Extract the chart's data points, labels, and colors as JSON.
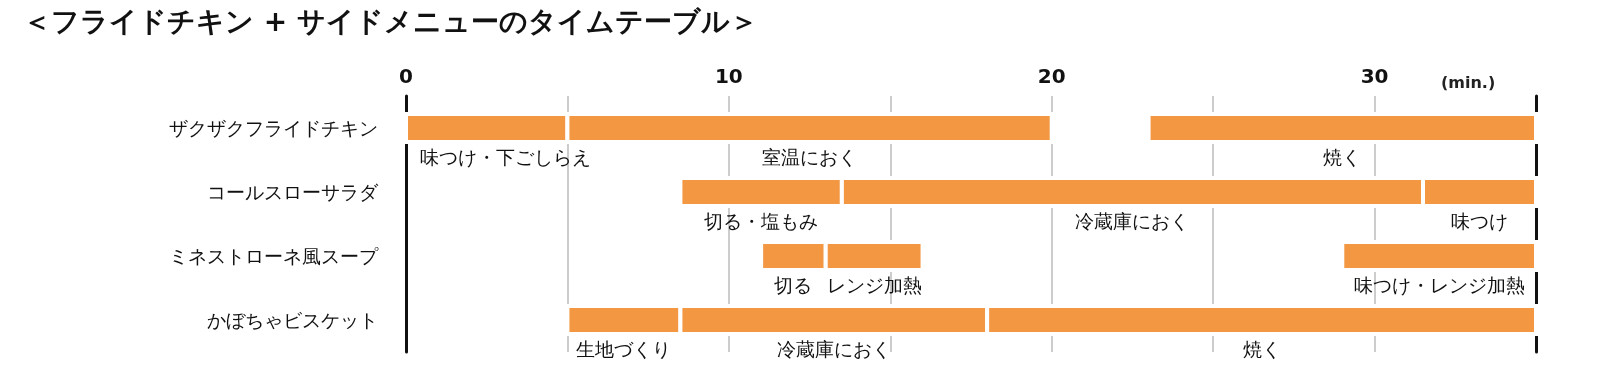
{
  "chart_data": {
    "type": "bar",
    "title": "＜フライドチキン + サイドメニューのタイムテーブル＞",
    "xlabel": "(min.)",
    "orientation": "horizontal",
    "categories": [
      "ザクザクフライドチキン",
      "コールスローサラダ",
      "ミネストローネ風スープ",
      "かぼちゃビスケット"
    ],
    "series": [
      {
        "color": "#f39743",
        "base": [
          0,
          8.5,
          11,
          5
        ],
        "values": [
          5,
          5,
          2,
          3.5
        ],
        "value_labels": [
          "味つけ・下ごしらえ",
          "切る・塩もみ",
          "切る",
          "生地づくり"
        ]
      },
      {
        "color": "#f39743",
        "base": [
          5,
          13.5,
          13,
          8.5
        ],
        "values": [
          15,
          18,
          3,
          9.5
        ],
        "value_labels": [
          "室温におく",
          "冷蔵庫におく",
          "レンジ加熱",
          "冷蔵庫におく"
        ]
      },
      {
        "color": "#f39743",
        "base": [
          23,
          31.5,
          29,
          18
        ],
        "values": [
          12,
          3.5,
          6,
          17
        ],
        "value_labels": [
          "焼く",
          "味つけ",
          "味つけ・レンジ加熱",
          "焼く"
        ]
      }
    ],
    "xlim": [
      0,
      35
    ],
    "xticks": [
      0,
      {
        "value": 5,
        "label": null
      },
      10,
      {
        "value": 15,
        "label": null
      },
      20,
      {
        "value": 25,
        "label": null
      },
      30
    ],
    "grid": "x"
  }
}
